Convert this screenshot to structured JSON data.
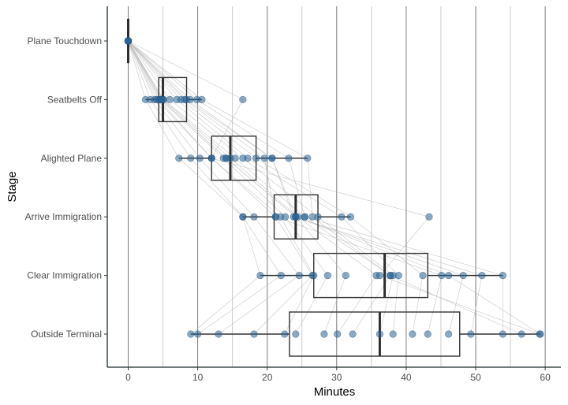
{
  "chart_data": {
    "type": "box",
    "xlabel": "Minutes",
    "ylabel": "Stage",
    "xlim": [
      -3,
      62
    ],
    "x_ticks": [
      0,
      10,
      20,
      30,
      40,
      50,
      60
    ],
    "x_tick_labels": [
      "0",
      "10",
      "20",
      "30",
      "40",
      "50",
      "60"
    ],
    "x_gridlines": [
      0,
      5,
      10,
      15,
      20,
      25,
      30,
      35,
      40,
      45,
      50,
      55,
      60
    ],
    "categories": [
      "Plane Touchdown",
      "Seatbelts Off",
      "Alighted Plane",
      "Arrive Immigration",
      "Clear Immigration",
      "Outside Terminal"
    ],
    "boxes": [
      {
        "stage": "Plane Touchdown",
        "whisker_low": 0,
        "q1": 0,
        "median": 0,
        "q3": 0,
        "whisker_high": 0
      },
      {
        "stage": "Seatbelts Off",
        "whisker_low": 2.5,
        "q1": 4.4,
        "median": 5,
        "q3": 8.4,
        "whisker_high": 10.6
      },
      {
        "stage": "Alighted Plane",
        "whisker_low": 7.3,
        "q1": 12,
        "median": 14.7,
        "q3": 18.4,
        "whisker_high": 25.8
      },
      {
        "stage": "Arrive Immigration",
        "whisker_low": 16.5,
        "q1": 21,
        "median": 24.1,
        "q3": 27.3,
        "whisker_high": 32
      },
      {
        "stage": "Clear Immigration",
        "whisker_low": 19,
        "q1": 26.7,
        "median": 36.9,
        "q3": 43.1,
        "whisker_high": 53.9
      },
      {
        "stage": "Outside Terminal",
        "whisker_low": 9,
        "q1": 23.2,
        "median": 36.2,
        "q3": 47.7,
        "whisker_high": 59.3
      }
    ],
    "passengers": [
      [
        0,
        2.5,
        7.3,
        16.5,
        19,
        9
      ],
      [
        0,
        3.2,
        9,
        16.5,
        22,
        10
      ],
      [
        0,
        3.8,
        10.3,
        18.1,
        24.6,
        13
      ],
      [
        0,
        4.1,
        12,
        21.2,
        26.5,
        18.1
      ],
      [
        0,
        4.4,
        12,
        21.9,
        26.7,
        22.5
      ],
      [
        0,
        4.6,
        13.7,
        22.6,
        28.7,
        24.1
      ],
      [
        0,
        4.8,
        14.1,
        24.1,
        31.3,
        28.2
      ],
      [
        0,
        5,
        14.7,
        24.4,
        35.7,
        30.1
      ],
      [
        0,
        5.1,
        15.4,
        25.4,
        37.7,
        32.3
      ],
      [
        0,
        6,
        16.5,
        27.3,
        38.1,
        36.2
      ],
      [
        0,
        7,
        17.2,
        30.7,
        38.9,
        38.1
      ],
      [
        0,
        7.6,
        18.4,
        32,
        42.4,
        40.9
      ],
      [
        0,
        8.1,
        19.6,
        21.2,
        45.1,
        43.1
      ],
      [
        0,
        8.4,
        20.7,
        24.1,
        48.2,
        46.1
      ],
      [
        0,
        8.9,
        20.7,
        23.8,
        50.9,
        49.3
      ],
      [
        0,
        9.9,
        23.1,
        25.4,
        53.9,
        53.9
      ],
      [
        0,
        10.6,
        25.8,
        26.5,
        37.7,
        56.6
      ],
      [
        0,
        16.5,
        12,
        43.3,
        36.2,
        59.2
      ],
      [
        0,
        4.8,
        14.1,
        24.1,
        46.1,
        59.3
      ]
    ],
    "grid": true,
    "legend": "none"
  }
}
